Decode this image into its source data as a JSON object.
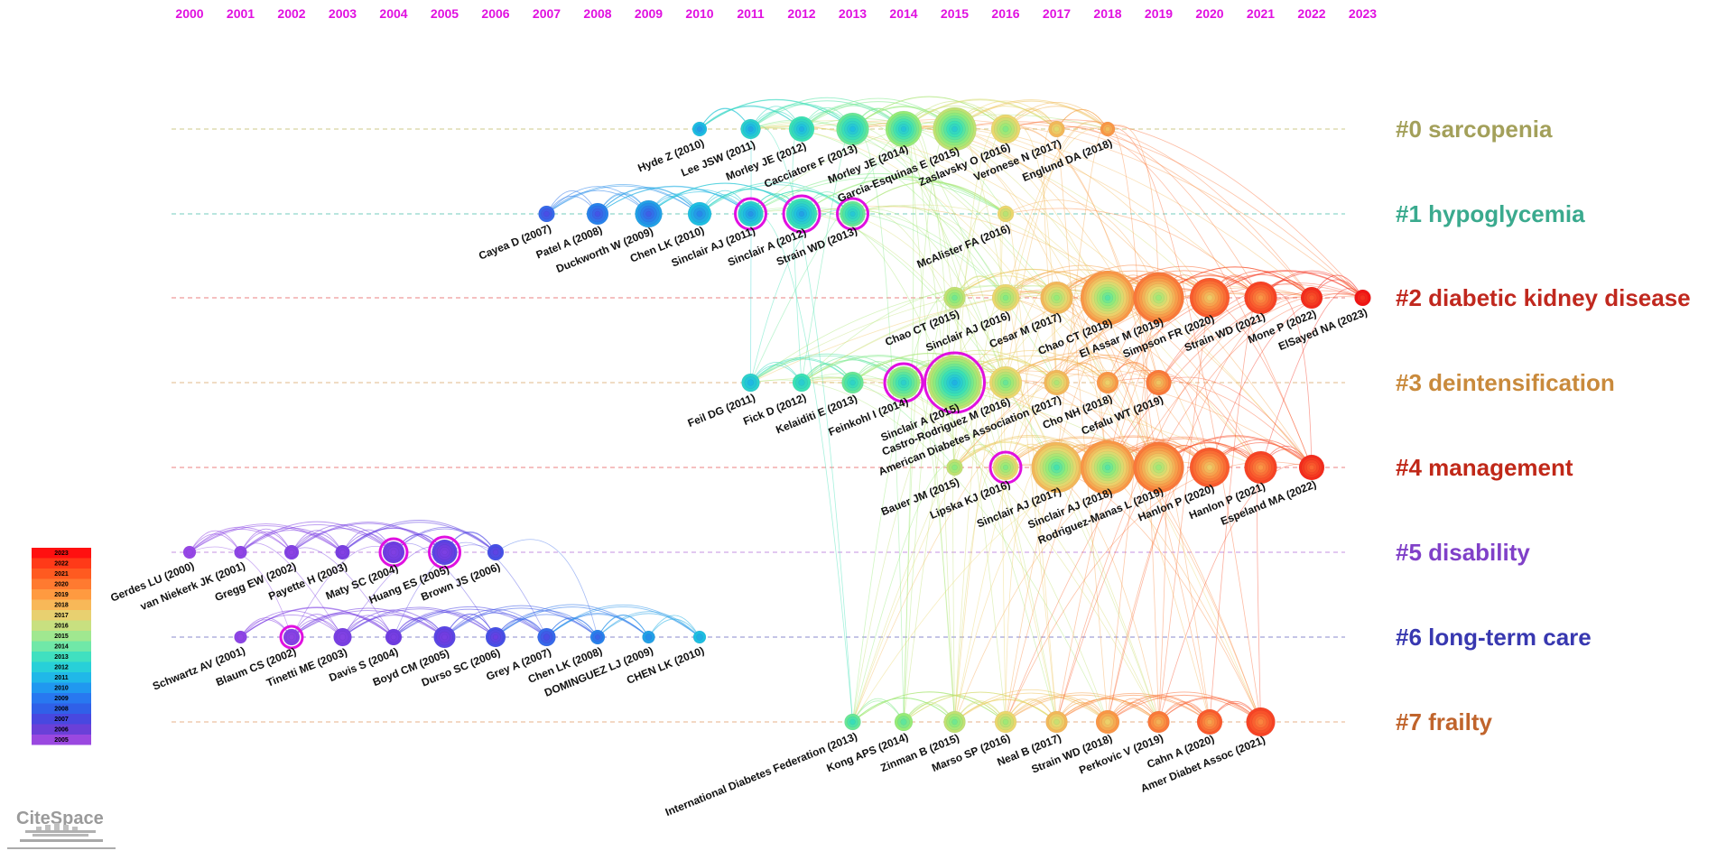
{
  "years": [
    "2000",
    "2001",
    "2002",
    "2003",
    "2004",
    "2005",
    "2006",
    "2007",
    "2008",
    "2009",
    "2010",
    "2011",
    "2012",
    "2013",
    "2014",
    "2015",
    "2016",
    "2017",
    "2018",
    "2019",
    "2020",
    "2021",
    "2022",
    "2023"
  ],
  "clusters": [
    {
      "id": "#0",
      "name": "sarcopenia",
      "label": "#0 sarcopenia",
      "color": "#a3a05a",
      "line": "#d8d4a0"
    },
    {
      "id": "#1",
      "name": "hypoglycemia",
      "label": "#1 hypoglycemia",
      "color": "#3aaa8e",
      "line": "#8fd8cc"
    },
    {
      "id": "#2",
      "name": "diabetic kidney disease",
      "label": "#2 diabetic kidney disease",
      "color": "#c0281e",
      "line": "#ef9a9a"
    },
    {
      "id": "#3",
      "name": "deintensification",
      "label": "#3 deintensification",
      "color": "#c98a3c",
      "line": "#e8c8a0"
    },
    {
      "id": "#4",
      "name": "management",
      "label": "#4 management",
      "color": "#c02818",
      "line": "#ef9a9a"
    },
    {
      "id": "#5",
      "name": "disability",
      "label": "#5 disability",
      "color": "#8040c8",
      "line": "#d0a8e8"
    },
    {
      "id": "#6",
      "name": "long-term care",
      "label": "#6 long-term care",
      "color": "#3838b0",
      "line": "#a0a0d8"
    },
    {
      "id": "#7",
      "name": "frailty",
      "label": "#7 frailty",
      "color": "#c0642c",
      "line": "#ecc0a0"
    }
  ],
  "nodes": [
    {
      "label": "Hyde Z (2010)",
      "year": 2010.0,
      "cluster": 0,
      "size": 8
    },
    {
      "label": "Lee JSW (2011)",
      "year": 2011.0,
      "cluster": 0,
      "size": 11
    },
    {
      "label": "Morley JE (2012)",
      "year": 2012.0,
      "cluster": 0,
      "size": 14
    },
    {
      "label": "Cacciatore F (2013)",
      "year": 2013.0,
      "cluster": 0,
      "size": 18
    },
    {
      "label": "Morley JE (2014)",
      "year": 2014.0,
      "cluster": 0,
      "size": 20
    },
    {
      "label": "Garcia-Esquinas E (2015)",
      "year": 2015.0,
      "cluster": 0,
      "size": 24
    },
    {
      "label": "Zaslavsky O (2016)",
      "year": 2016.0,
      "cluster": 0,
      "size": 16
    },
    {
      "label": "Veronese N (2017)",
      "year": 2017.0,
      "cluster": 0,
      "size": 9
    },
    {
      "label": "Englund DA (2018)",
      "year": 2018.0,
      "cluster": 0,
      "size": 8
    },
    {
      "label": "Cayea D (2007)",
      "year": 2007.0,
      "cluster": 1,
      "size": 9
    },
    {
      "label": "Patel A (2008)",
      "year": 2008.0,
      "cluster": 1,
      "size": 12
    },
    {
      "label": "Duckworth W (2009)",
      "year": 2009.0,
      "cluster": 1,
      "size": 15
    },
    {
      "label": "Chen LK (2010)",
      "year": 2010.0,
      "cluster": 1,
      "size": 13
    },
    {
      "label": "Sinclair AJ (2011)",
      "year": 2011.0,
      "cluster": 1,
      "size": 14
    },
    {
      "label": "Sinclair A (2012)",
      "year": 2012.0,
      "cluster": 1,
      "size": 17
    },
    {
      "label": "Strain WD (2013)",
      "year": 2013.0,
      "cluster": 1,
      "size": 14
    },
    {
      "label": "McAlister FA (2016)",
      "year": 2016.0,
      "cluster": 1,
      "size": 9
    },
    {
      "label": "Chao CT (2015)",
      "year": 2015.0,
      "cluster": 2,
      "size": 12
    },
    {
      "label": "Sinclair AJ (2016)",
      "year": 2016.0,
      "cluster": 2,
      "size": 15
    },
    {
      "label": "Cesar M (2017)",
      "year": 2017.0,
      "cluster": 2,
      "size": 18
    },
    {
      "label": "Chao CT (2018)",
      "year": 2018.0,
      "cluster": 2,
      "size": 30
    },
    {
      "label": "El Assar M (2019)",
      "year": 2019.0,
      "cluster": 2,
      "size": 28
    },
    {
      "label": "Simpson FR (2020)",
      "year": 2020.0,
      "cluster": 2,
      "size": 22
    },
    {
      "label": "Strain WD (2021)",
      "year": 2021.0,
      "cluster": 2,
      "size": 18
    },
    {
      "label": "Mone P (2022)",
      "year": 2022.0,
      "cluster": 2,
      "size": 12
    },
    {
      "label": "ElSayed NA (2023)",
      "year": 2023.0,
      "cluster": 2,
      "size": 9
    },
    {
      "label": "Feil DG (2011)",
      "year": 2011.0,
      "cluster": 3,
      "size": 10
    },
    {
      "label": "Fick D (2012)",
      "year": 2012.0,
      "cluster": 3,
      "size": 10
    },
    {
      "label": "Kelaiditi E (2013)",
      "year": 2013.0,
      "cluster": 3,
      "size": 12
    },
    {
      "label": "Feinkohl I (2014)",
      "year": 2014.0,
      "cluster": 3,
      "size": 18
    },
    {
      "label": "Sinclair A (2015)",
      "year": 2015.0,
      "cluster": 3,
      "size": 30
    },
    {
      "label": "Castro-Rodriguez M (2016)",
      "year": 2016.0,
      "cluster": 3,
      "size": 18
    },
    {
      "label": "American Diabetes Association (2017)",
      "year": 2017.0,
      "cluster": 3,
      "size": 14
    },
    {
      "label": "Cho NH (2018)",
      "year": 2018.0,
      "cluster": 3,
      "size": 12
    },
    {
      "label": "Cefalu WT (2019)",
      "year": 2019.0,
      "cluster": 3,
      "size": 14
    },
    {
      "label": "Bauer JM (2015)",
      "year": 2015.0,
      "cluster": 4,
      "size": 9
    },
    {
      "label": "Lipska KJ (2016)",
      "year": 2016.0,
      "cluster": 4,
      "size": 14
    },
    {
      "label": "Sinclair AJ (2017)",
      "year": 2017.0,
      "cluster": 4,
      "size": 28
    },
    {
      "label": "Sinclair AJ (2018)",
      "year": 2018.0,
      "cluster": 4,
      "size": 30
    },
    {
      "label": "Rodriguez-Manas L (2019)",
      "year": 2019.0,
      "cluster": 4,
      "size": 28
    },
    {
      "label": "Hanlon P (2020)",
      "year": 2020.0,
      "cluster": 4,
      "size": 22
    },
    {
      "label": "Hanlon P (2021)",
      "year": 2021.0,
      "cluster": 4,
      "size": 18
    },
    {
      "label": "Espeland MA (2022)",
      "year": 2022.0,
      "cluster": 4,
      "size": 14
    },
    {
      "label": "Gerdes LU (2000)",
      "year": 2000.0,
      "cluster": 5,
      "size": 7
    },
    {
      "label": "van Niekerk JK (2001)",
      "year": 2001.0,
      "cluster": 5,
      "size": 7
    },
    {
      "label": "Gregg EW (2002)",
      "year": 2002.0,
      "cluster": 5,
      "size": 8
    },
    {
      "label": "Payette H (2003)",
      "year": 2003.0,
      "cluster": 5,
      "size": 8
    },
    {
      "label": "Maty SC (2004)",
      "year": 2004.0,
      "cluster": 5,
      "size": 12
    },
    {
      "label": "Huang ES (2005)",
      "year": 2005.0,
      "cluster": 5,
      "size": 14
    },
    {
      "label": "Brown JS (2006)",
      "year": 2006.0,
      "cluster": 5,
      "size": 9
    },
    {
      "label": "Schwartz AV (2001)",
      "year": 2001.0,
      "cluster": 6,
      "size": 7
    },
    {
      "label": "Blaum CS (2002)",
      "year": 2002.0,
      "cluster": 6,
      "size": 9
    },
    {
      "label": "Tinetti ME (2003)",
      "year": 2003.0,
      "cluster": 6,
      "size": 10
    },
    {
      "label": "Davis S (2004)",
      "year": 2004.0,
      "cluster": 6,
      "size": 9
    },
    {
      "label": "Boyd CM (2005)",
      "year": 2005.0,
      "cluster": 6,
      "size": 12
    },
    {
      "label": "Durso SC (2006)",
      "year": 2006.0,
      "cluster": 6,
      "size": 11
    },
    {
      "label": "Grey A (2007)",
      "year": 2007.0,
      "cluster": 6,
      "size": 10
    },
    {
      "label": "Chen LK (2008)",
      "year": 2008.0,
      "cluster": 6,
      "size": 8
    },
    {
      "label": "DOMINGUEZ LJ (2009)",
      "year": 2009.0,
      "cluster": 6,
      "size": 7
    },
    {
      "label": "CHEN LK (2010)",
      "year": 2010.0,
      "cluster": 6,
      "size": 7
    },
    {
      "label": "International Diabetes Federation (2013)",
      "year": 2013.0,
      "cluster": 7,
      "size": 9
    },
    {
      "label": "Kong APS (2014)",
      "year": 2014.0,
      "cluster": 7,
      "size": 10
    },
    {
      "label": "Zinman B (2015)",
      "year": 2015.0,
      "cluster": 7,
      "size": 12
    },
    {
      "label": "Marso SP (2016)",
      "year": 2016.0,
      "cluster": 7,
      "size": 12
    },
    {
      "label": "Neal B (2017)",
      "year": 2017.0,
      "cluster": 7,
      "size": 12
    },
    {
      "label": "Strain WD (2018)",
      "year": 2018.0,
      "cluster": 7,
      "size": 13
    },
    {
      "label": "Perkovic V (2019)",
      "year": 2019.0,
      "cluster": 7,
      "size": 12
    },
    {
      "label": "Cahn A (2020)",
      "year": 2020.0,
      "cluster": 7,
      "size": 14
    },
    {
      "label": "Amer Diabet Assoc (2021)",
      "year": 2021.0,
      "cluster": 7,
      "size": 16
    }
  ],
  "legend": {
    "years": [
      "2023",
      "2022",
      "2021",
      "2020",
      "2019",
      "2018",
      "2017",
      "2016",
      "2015",
      "2014",
      "2013",
      "2012",
      "2011",
      "2010",
      "2009",
      "2008",
      "2007",
      "2006",
      "2005"
    ],
    "colors": [
      "#ff1010",
      "#ff3a18",
      "#ff5a20",
      "#ff7a30",
      "#ff9a40",
      "#f8b858",
      "#e8d070",
      "#c8e080",
      "#a0e890",
      "#70e8a8",
      "#40e0c0",
      "#28d0d8",
      "#20b8e8",
      "#2098f0",
      "#2878f0",
      "#3060e8",
      "#4848e0",
      "#6a40d8",
      "#9a48e0"
    ]
  },
  "logo": {
    "text": "CiteSpace"
  }
}
